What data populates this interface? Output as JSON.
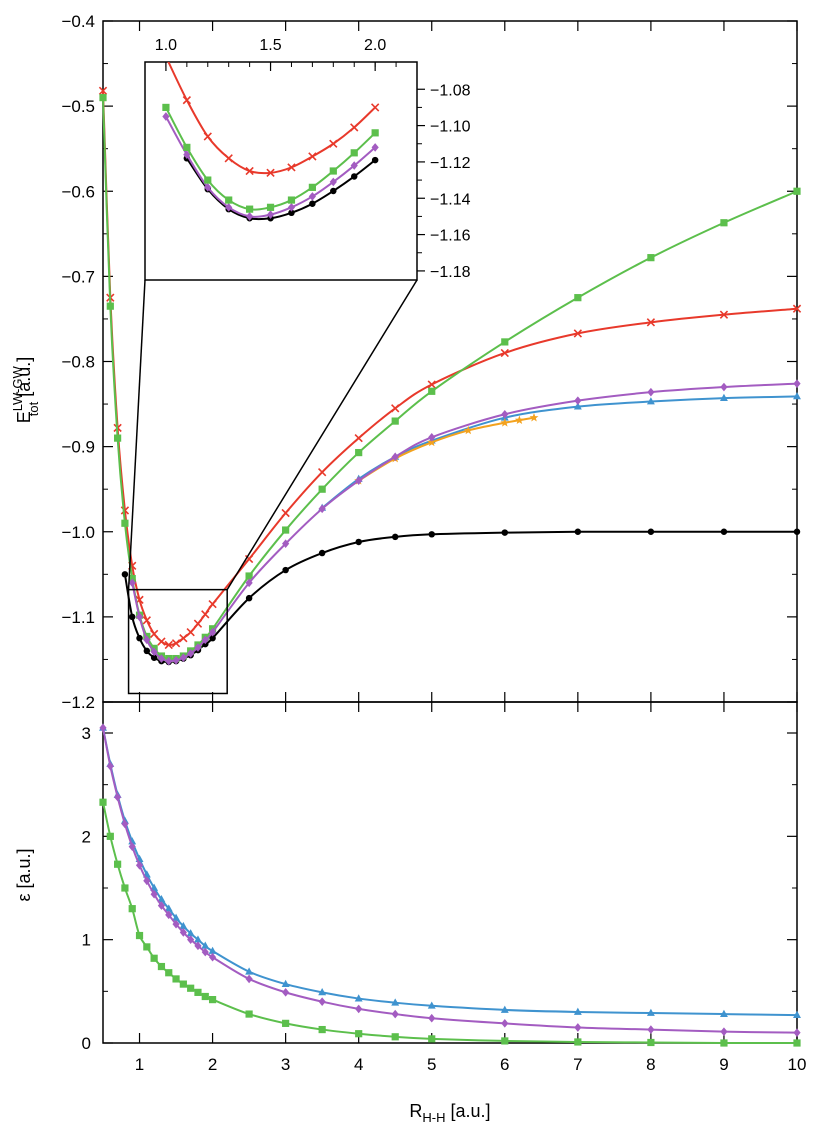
{
  "chart_data": [
    {
      "type": "line",
      "panel": "top",
      "ylabel_main": "E",
      "ylabel_sup": "LW-GW",
      "ylabel_sub": "tot",
      "ylabel_unit": " [a.u.]",
      "xlim": [
        0.5,
        10
      ],
      "ylim": [
        -1.2,
        -0.4
      ],
      "ytick_labels": [
        "−0.4",
        "−0.5",
        "−0.6",
        "−0.7",
        "−0.8",
        "−0.9",
        "−1.0",
        "−1.1",
        "−1.2"
      ],
      "ytick_values": [
        -0.4,
        -0.5,
        -0.6,
        -0.7,
        -0.8,
        -0.9,
        -1.0,
        -1.1,
        -1.2
      ],
      "colors": {
        "black": "#000000",
        "red": "#e8392b",
        "green": "#5cbf4c",
        "purple": "#a35cc1",
        "blue": "#3f93cf",
        "orange": "#f3a21e"
      },
      "series": [
        {
          "color": "#000000",
          "marker": "circle",
          "x": [
            0.8,
            0.9,
            1.0,
            1.1,
            1.2,
            1.3,
            1.4,
            1.5,
            1.6,
            1.7,
            1.8,
            1.9,
            2.0,
            2.5,
            3.0,
            3.5,
            4.0,
            4.5,
            5.0,
            6.0,
            7.0,
            8.0,
            9.0,
            10.0
          ],
          "y": [
            -1.05,
            -1.1,
            -1.125,
            -1.14,
            -1.148,
            -1.152,
            -1.153,
            -1.152,
            -1.149,
            -1.145,
            -1.139,
            -1.132,
            -1.125,
            -1.078,
            -1.045,
            -1.025,
            -1.012,
            -1.006,
            -1.003,
            -1.001,
            -1.0,
            -1.0,
            -1.0,
            -1.0
          ]
        },
        {
          "color": "#e8392b",
          "marker": "x",
          "x": [
            0.5,
            0.6,
            0.7,
            0.8,
            0.9,
            1.0,
            1.1,
            1.2,
            1.3,
            1.4,
            1.5,
            1.6,
            1.7,
            1.8,
            1.9,
            2.0,
            2.5,
            3.0,
            3.5,
            4.0,
            4.5,
            5.0,
            6.0,
            7.0,
            8.0,
            9.0,
            10.0
          ],
          "y": [
            -0.482,
            -0.725,
            -0.878,
            -0.975,
            -1.04,
            -1.08,
            -1.104,
            -1.12,
            -1.129,
            -1.133,
            -1.131,
            -1.125,
            -1.118,
            -1.108,
            -1.097,
            -1.085,
            -1.032,
            -0.978,
            -0.93,
            -0.89,
            -0.855,
            -0.827,
            -0.79,
            -0.767,
            -0.754,
            -0.745,
            -0.738
          ]
        },
        {
          "color": "#5cbf4c",
          "marker": "square",
          "x": [
            0.5,
            0.6,
            0.7,
            0.8,
            0.9,
            1.0,
            1.1,
            1.2,
            1.3,
            1.4,
            1.5,
            1.6,
            1.7,
            1.8,
            1.9,
            2.0,
            2.5,
            3.0,
            3.5,
            4.0,
            4.5,
            5.0,
            6.0,
            7.0,
            8.0,
            9.0,
            10.0
          ],
          "y": [
            -0.49,
            -0.735,
            -0.89,
            -0.99,
            -1.055,
            -1.098,
            -1.123,
            -1.137,
            -1.146,
            -1.149,
            -1.149,
            -1.146,
            -1.14,
            -1.133,
            -1.124,
            -1.114,
            -1.052,
            -0.998,
            -0.95,
            -0.907,
            -0.87,
            -0.835,
            -0.777,
            -0.725,
            -0.678,
            -0.637,
            -0.6
          ]
        },
        {
          "color": "#3f93cf",
          "marker": "triangle",
          "x": [
            3.5,
            4.0,
            4.5,
            5.0,
            6.0,
            7.0,
            8.0,
            9.0,
            10.0
          ],
          "y": [
            -0.972,
            -0.938,
            -0.912,
            -0.893,
            -0.866,
            -0.853,
            -0.847,
            -0.843,
            -0.841
          ]
        },
        {
          "color": "#f3a21e",
          "marker": "star",
          "x": [
            4.0,
            4.5,
            5.0,
            5.5,
            6.0,
            6.2,
            6.4
          ],
          "y": [
            -0.94,
            -0.914,
            -0.895,
            -0.881,
            -0.872,
            -0.869,
            -0.866
          ]
        },
        {
          "color": "#a35cc1",
          "marker": "diamond",
          "x": [
            0.9,
            1.0,
            1.1,
            1.2,
            1.3,
            1.4,
            1.5,
            1.6,
            1.7,
            1.8,
            1.9,
            2.0,
            2.5,
            3.0,
            3.5,
            4.0,
            4.5,
            5.0,
            6.0,
            7.0,
            8.0,
            9.0,
            10.0
          ],
          "y": [
            -1.06,
            -1.1,
            -1.127,
            -1.141,
            -1.149,
            -1.152,
            -1.151,
            -1.148,
            -1.143,
            -1.136,
            -1.127,
            -1.118,
            -1.06,
            -1.014,
            -0.973,
            -0.94,
            -0.912,
            -0.889,
            -0.862,
            -0.846,
            -0.836,
            -0.83,
            -0.826
          ]
        }
      ]
    },
    {
      "type": "line",
      "panel": "inset",
      "xlim": [
        0.9,
        2.2
      ],
      "ylim": [
        -1.185,
        -1.065
      ],
      "xtick_labels": [
        "1.0",
        "1.5",
        "2.0"
      ],
      "xtick_values": [
        1.0,
        1.5,
        2.0
      ],
      "ytick_labels": [
        "−1.08",
        "−1.10",
        "−1.12",
        "−1.14",
        "−1.16",
        "−1.18"
      ],
      "ytick_values": [
        -1.08,
        -1.1,
        -1.12,
        -1.14,
        -1.16,
        -1.18
      ],
      "zoom_box": {
        "x": [
          0.85,
          2.2
        ],
        "y": [
          -1.19,
          -1.068
        ]
      },
      "series": [
        {
          "color": "#000000",
          "marker": "circle",
          "x": [
            1.1,
            1.2,
            1.3,
            1.4,
            1.5,
            1.6,
            1.7,
            1.8,
            1.9,
            2.0
          ],
          "y": [
            -1.118,
            -1.135,
            -1.146,
            -1.151,
            -1.151,
            -1.148,
            -1.143,
            -1.136,
            -1.128,
            -1.119
          ]
        },
        {
          "color": "#a35cc1",
          "marker": "diamond",
          "x": [
            1.0,
            1.1,
            1.2,
            1.3,
            1.4,
            1.5,
            1.6,
            1.7,
            1.8,
            1.9,
            2.0
          ],
          "y": [
            -1.095,
            -1.116,
            -1.134,
            -1.145,
            -1.15,
            -1.149,
            -1.145,
            -1.139,
            -1.131,
            -1.122,
            -1.112
          ]
        },
        {
          "color": "#5cbf4c",
          "marker": "square",
          "x": [
            1.0,
            1.1,
            1.2,
            1.3,
            1.4,
            1.5,
            1.6,
            1.7,
            1.8,
            1.9,
            2.0
          ],
          "y": [
            -1.09,
            -1.112,
            -1.13,
            -1.141,
            -1.146,
            -1.145,
            -1.141,
            -1.134,
            -1.125,
            -1.115,
            -1.104
          ]
        },
        {
          "color": "#e8392b",
          "marker": "x",
          "x": [
            1.0,
            1.1,
            1.2,
            1.3,
            1.4,
            1.5,
            1.6,
            1.7,
            1.8,
            1.9,
            2.0
          ],
          "y": [
            -1.062,
            -1.086,
            -1.106,
            -1.118,
            -1.125,
            -1.126,
            -1.123,
            -1.117,
            -1.11,
            -1.101,
            -1.09
          ]
        }
      ]
    },
    {
      "type": "line",
      "panel": "bottom",
      "ylabel": "ε [a.u.]",
      "xlabel_main": "R",
      "xlabel_sub": "H-H",
      "xlabel_unit": " [a.u.]",
      "xlim": [
        0.5,
        10
      ],
      "ylim": [
        0,
        3.3
      ],
      "xtick_labels": [
        "1",
        "2",
        "3",
        "4",
        "5",
        "6",
        "7",
        "8",
        "9",
        "10"
      ],
      "xtick_values": [
        1,
        2,
        3,
        4,
        5,
        6,
        7,
        8,
        9,
        10
      ],
      "ytick_labels": [
        "0",
        "1",
        "2",
        "3"
      ],
      "ytick_values": [
        0,
        1,
        2,
        3
      ],
      "series": [
        {
          "color": "#3f93cf",
          "marker": "triangle",
          "x": [
            0.5,
            0.6,
            0.7,
            0.8,
            0.9,
            1.0,
            1.1,
            1.2,
            1.3,
            1.4,
            1.5,
            1.6,
            1.7,
            1.8,
            1.9,
            2.0,
            2.5,
            3.0,
            3.5,
            4.0,
            4.5,
            5.0,
            6.0,
            7.0,
            8.0,
            9.0,
            10.0
          ],
          "y": [
            3.05,
            2.7,
            2.4,
            2.15,
            1.95,
            1.78,
            1.63,
            1.5,
            1.39,
            1.3,
            1.21,
            1.13,
            1.06,
            1.0,
            0.94,
            0.89,
            0.69,
            0.57,
            0.49,
            0.43,
            0.39,
            0.36,
            0.32,
            0.3,
            0.29,
            0.28,
            0.27
          ]
        },
        {
          "color": "#a35cc1",
          "marker": "diamond",
          "x": [
            0.5,
            0.6,
            0.7,
            0.8,
            0.9,
            1.0,
            1.1,
            1.2,
            1.3,
            1.4,
            1.5,
            1.6,
            1.7,
            1.8,
            1.9,
            2.0,
            2.5,
            3.0,
            3.5,
            4.0,
            4.5,
            5.0,
            6.0,
            7.0,
            8.0,
            9.0,
            10.0
          ],
          "y": [
            3.05,
            2.68,
            2.38,
            2.12,
            1.9,
            1.72,
            1.57,
            1.44,
            1.33,
            1.24,
            1.15,
            1.07,
            1.0,
            0.94,
            0.88,
            0.83,
            0.62,
            0.49,
            0.4,
            0.33,
            0.28,
            0.24,
            0.19,
            0.15,
            0.13,
            0.11,
            0.1
          ]
        },
        {
          "color": "#5cbf4c",
          "marker": "square",
          "x": [
            0.5,
            0.6,
            0.7,
            0.8,
            0.9,
            1.0,
            1.1,
            1.2,
            1.3,
            1.4,
            1.5,
            1.6,
            1.7,
            1.8,
            1.9,
            2.0,
            2.5,
            3.0,
            3.5,
            4.0,
            4.5,
            5.0,
            6.0,
            7.0,
            8.0,
            9.0,
            10.0
          ],
          "y": [
            2.33,
            2.0,
            1.73,
            1.5,
            1.3,
            1.04,
            0.93,
            0.82,
            0.74,
            0.68,
            0.62,
            0.57,
            0.53,
            0.49,
            0.45,
            0.42,
            0.28,
            0.19,
            0.13,
            0.09,
            0.06,
            0.04,
            0.02,
            0.01,
            0.005,
            0.0,
            0.0
          ]
        }
      ]
    }
  ]
}
